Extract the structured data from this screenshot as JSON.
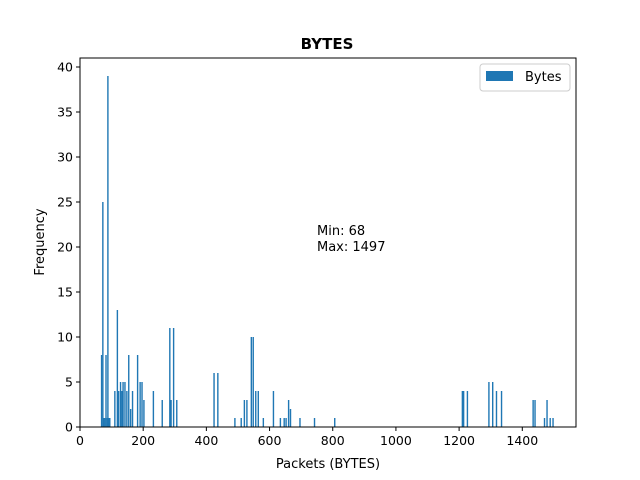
{
  "chart_data": {
    "type": "bar",
    "title": "BYTES",
    "xlabel": "Packets (BYTES)",
    "ylabel": "Frequency",
    "xlim": [
      0,
      1570
    ],
    "ylim": [
      0,
      41
    ],
    "xticks": [
      0,
      200,
      400,
      600,
      800,
      1000,
      1200,
      1400
    ],
    "yticks": [
      0,
      5,
      10,
      15,
      20,
      25,
      30,
      35,
      40
    ],
    "grid": false,
    "legend": {
      "position": "top-right",
      "entries": [
        "Bytes"
      ]
    },
    "annotation": [
      "Min: 68",
      "Max: 1497"
    ],
    "bar_color": "#1f77b4",
    "series": [
      {
        "name": "Bytes",
        "x": [
          68,
          72,
          74,
          78,
          82,
          86,
          88,
          92,
          94,
          110,
          118,
          122,
          128,
          132,
          136,
          142,
          148,
          154,
          160,
          166,
          182,
          190,
          196,
          202,
          232,
          260,
          284,
          288,
          296,
          306,
          424,
          436,
          490,
          510,
          520,
          528,
          542,
          548,
          556,
          564,
          580,
          612,
          634,
          646,
          652,
          660,
          666,
          696,
          742,
          806,
          1210,
          1214,
          1226,
          1294,
          1306,
          1318,
          1334,
          1434,
          1440,
          1470,
          1478,
          1488,
          1497
        ],
        "y": [
          8,
          25,
          1,
          1,
          8,
          1,
          39,
          1,
          1,
          4,
          13,
          4,
          5,
          4,
          5,
          5,
          4,
          8,
          2,
          4,
          8,
          5,
          5,
          3,
          4,
          3,
          11,
          3,
          11,
          3,
          6,
          6,
          1,
          1,
          3,
          3,
          10,
          10,
          4,
          4,
          1,
          4,
          1,
          1,
          1,
          3,
          2,
          1,
          1,
          1,
          4,
          4,
          4,
          5,
          5,
          4,
          4,
          3,
          3,
          1,
          3,
          1,
          1
        ]
      }
    ]
  }
}
